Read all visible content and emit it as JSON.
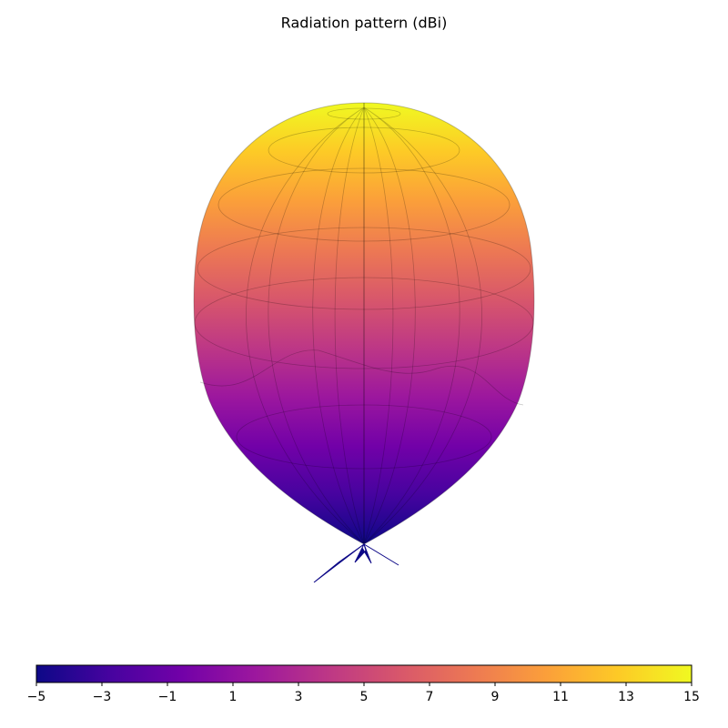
{
  "chart_data": {
    "type": "surface3d",
    "title": "Radiation pattern (dBi)",
    "colormap": "plasma",
    "clim": [
      -5,
      15
    ],
    "cticks": [
      {
        "value": -5,
        "label": "−5"
      },
      {
        "value": -3,
        "label": "−3"
      },
      {
        "value": -1,
        "label": "−1"
      },
      1,
      3,
      5,
      7,
      9,
      11,
      13,
      15
    ]
  }
}
